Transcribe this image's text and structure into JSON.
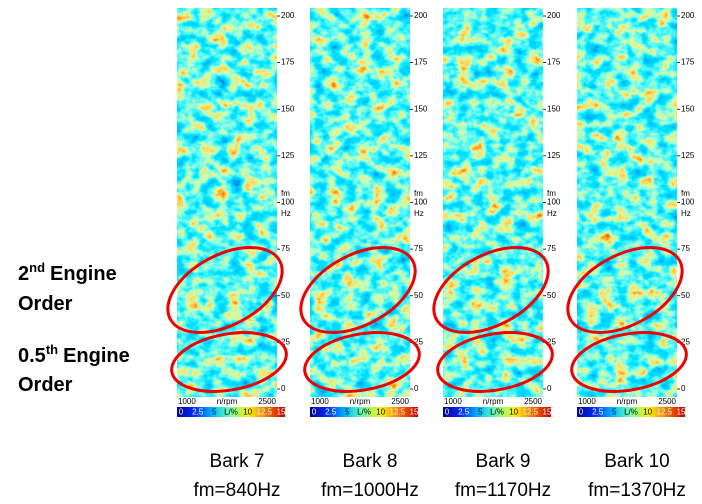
{
  "annotations": [
    {
      "ordinal": "2",
      "suffix": "nd",
      "line1": "Engine",
      "line2": "Order"
    },
    {
      "ordinal": "0.5",
      "suffix": "th",
      "line1": "Engine",
      "line2": "Order"
    }
  ],
  "panels": [
    {
      "band": "Bark 7",
      "center": "fm=840Hz"
    },
    {
      "band": "Bark 8",
      "center": "fm=1000Hz"
    },
    {
      "band": "Bark 9",
      "center": "fm=1170Hz"
    },
    {
      "band": "Bark 10",
      "center": "fm=1370Hz"
    }
  ],
  "y_axis": {
    "ticks": [
      "0",
      "25",
      "50",
      "75",
      "100",
      "125",
      "150",
      "175",
      "200"
    ],
    "label": [
      "fm",
      "-",
      "Hz"
    ]
  },
  "x_axis": {
    "ticks": [
      "1000",
      "2500"
    ],
    "label": "n/rpm"
  },
  "colorbar": {
    "labels": [
      "0",
      "2.5",
      "5",
      "L/%",
      "10",
      "12.5",
      "15"
    ]
  }
}
